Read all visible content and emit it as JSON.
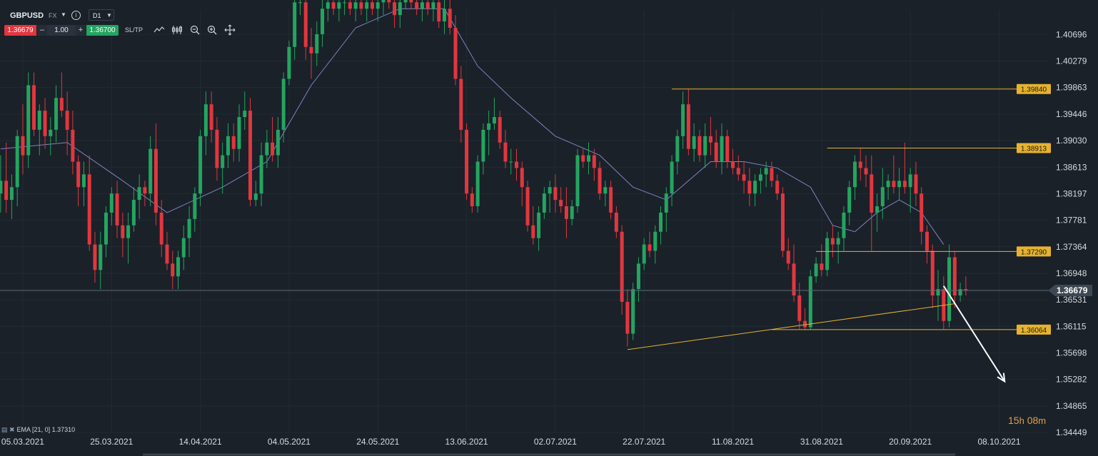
{
  "toolbar": {
    "symbol": "GBPUSD",
    "asset_class": "FX",
    "timeframe": "D1",
    "sell_price": "1.36679",
    "quantity": "1.00",
    "buy_price": "1.36700",
    "sltp_label": "SL/TP",
    "minus": "–",
    "plus": "+",
    "info": "i",
    "icons": [
      "chart-type-icon",
      "indicators-icon",
      "zoom-out-icon",
      "zoom-in-icon",
      "crosshair-icon"
    ]
  },
  "indicator_label": "EMA [21, 0] 1.37310",
  "timer": {
    "hours": "15",
    "h": "h",
    "minutes": "08",
    "m": "m"
  },
  "colors": {
    "up": "#23a560",
    "down": "#e2363f",
    "ema": "#7f84c2",
    "level": "#e7b32e",
    "background": "#1a2129",
    "arrow": "#ffffff"
  },
  "chart_data": {
    "type": "candlestick",
    "symbol": "GBPUSD",
    "timeframe": "D1",
    "ylim": [
      1.3445,
      1.4108
    ],
    "y_ticks": [
      "1.40696",
      "1.40279",
      "1.39863",
      "1.39446",
      "1.39030",
      "1.38613",
      "1.38197",
      "1.37781",
      "1.37364",
      "1.36948",
      "1.36531",
      "1.36115",
      "1.35698",
      "1.35282",
      "1.34865",
      "1.34449"
    ],
    "x_ticks": [
      "05.03.2021",
      "25.03.2021",
      "14.04.2021",
      "04.05.2021",
      "24.05.2021",
      "13.06.2021",
      "02.07.2021",
      "22.07.2021",
      "11.08.2021",
      "31.08.2021",
      "20.09.2021",
      "08.10.2021"
    ],
    "current_price": "1.36679",
    "horizontal_levels": [
      "1.39840",
      "1.38913",
      "1.37290",
      "1.36064"
    ],
    "candles": [
      [
        1.382,
        1.388,
        1.379,
        1.384
      ],
      [
        1.384,
        1.39,
        1.379,
        1.381
      ],
      [
        1.381,
        1.385,
        1.378,
        1.383
      ],
      [
        1.383,
        1.392,
        1.38,
        1.391
      ],
      [
        1.391,
        1.396,
        1.385,
        1.388
      ],
      [
        1.388,
        1.401,
        1.386,
        1.399
      ],
      [
        1.399,
        1.401,
        1.391,
        1.392
      ],
      [
        1.392,
        1.396,
        1.388,
        1.395
      ],
      [
        1.395,
        1.397,
        1.389,
        1.391
      ],
      [
        1.391,
        1.394,
        1.388,
        1.392
      ],
      [
        1.392,
        1.399,
        1.39,
        1.397
      ],
      [
        1.397,
        1.401,
        1.394,
        1.395
      ],
      [
        1.395,
        1.398,
        1.388,
        1.392
      ],
      [
        1.392,
        1.395,
        1.385,
        1.387
      ],
      [
        1.387,
        1.388,
        1.38,
        1.383
      ],
      [
        1.383,
        1.387,
        1.38,
        1.385
      ],
      [
        1.385,
        1.388,
        1.373,
        1.374
      ],
      [
        1.374,
        1.376,
        1.368,
        1.37
      ],
      [
        1.37,
        1.376,
        1.367,
        1.374
      ],
      [
        1.374,
        1.38,
        1.372,
        1.379
      ],
      [
        1.379,
        1.383,
        1.377,
        1.382
      ],
      [
        1.382,
        1.384,
        1.375,
        1.377
      ],
      [
        1.377,
        1.379,
        1.372,
        1.375
      ],
      [
        1.375,
        1.379,
        1.371,
        1.377
      ],
      [
        1.377,
        1.383,
        1.376,
        1.381
      ],
      [
        1.381,
        1.385,
        1.378,
        1.383
      ],
      [
        1.383,
        1.384,
        1.38,
        1.382
      ],
      [
        1.382,
        1.391,
        1.38,
        1.389
      ],
      [
        1.389,
        1.393,
        1.377,
        1.379
      ],
      [
        1.379,
        1.381,
        1.372,
        1.374
      ],
      [
        1.374,
        1.376,
        1.37,
        1.371
      ],
      [
        1.371,
        1.373,
        1.367,
        1.369
      ],
      [
        1.369,
        1.373,
        1.367,
        1.372
      ],
      [
        1.372,
        1.377,
        1.37,
        1.375
      ],
      [
        1.375,
        1.38,
        1.372,
        1.378
      ],
      [
        1.378,
        1.383,
        1.376,
        1.382
      ],
      [
        1.382,
        1.392,
        1.38,
        1.391
      ],
      [
        1.391,
        1.398,
        1.388,
        1.396
      ],
      [
        1.396,
        1.398,
        1.39,
        1.392
      ],
      [
        1.392,
        1.394,
        1.384,
        1.386
      ],
      [
        1.386,
        1.39,
        1.382,
        1.388
      ],
      [
        1.388,
        1.393,
        1.386,
        1.391
      ],
      [
        1.391,
        1.393,
        1.387,
        1.389
      ],
      [
        1.389,
        1.396,
        1.387,
        1.394
      ],
      [
        1.394,
        1.398,
        1.392,
        1.395
      ],
      [
        1.395,
        1.397,
        1.38,
        1.381
      ],
      [
        1.381,
        1.384,
        1.38,
        1.382
      ],
      [
        1.382,
        1.39,
        1.38,
        1.388
      ],
      [
        1.388,
        1.392,
        1.386,
        1.39
      ],
      [
        1.39,
        1.394,
        1.387,
        1.388
      ],
      [
        1.388,
        1.394,
        1.386,
        1.392
      ],
      [
        1.392,
        1.401,
        1.39,
        1.4
      ],
      [
        1.4,
        1.406,
        1.399,
        1.405
      ],
      [
        1.405,
        1.414,
        1.403,
        1.412
      ],
      [
        1.412,
        1.415,
        1.41,
        1.412
      ],
      [
        1.412,
        1.415,
        1.403,
        1.405
      ],
      [
        1.405,
        1.408,
        1.4,
        1.404
      ],
      [
        1.404,
        1.409,
        1.402,
        1.407
      ],
      [
        1.407,
        1.413,
        1.405,
        1.411
      ],
      [
        1.411,
        1.414,
        1.409,
        1.412
      ],
      [
        1.412,
        1.414,
        1.41,
        1.411
      ],
      [
        1.411,
        1.414,
        1.409,
        1.412
      ],
      [
        1.412,
        1.415,
        1.41,
        1.412
      ],
      [
        1.412,
        1.414,
        1.41,
        1.411
      ],
      [
        1.411,
        1.413,
        1.409,
        1.412
      ],
      [
        1.412,
        1.414,
        1.41,
        1.411
      ],
      [
        1.411,
        1.414,
        1.409,
        1.412
      ],
      [
        1.412,
        1.414,
        1.41,
        1.411
      ],
      [
        1.411,
        1.413,
        1.409,
        1.412
      ],
      [
        1.412,
        1.415,
        1.41,
        1.414
      ],
      [
        1.414,
        1.416,
        1.411,
        1.412
      ],
      [
        1.412,
        1.413,
        1.408,
        1.41
      ],
      [
        1.41,
        1.414,
        1.408,
        1.412
      ],
      [
        1.412,
        1.414,
        1.411,
        1.413
      ],
      [
        1.413,
        1.414,
        1.411,
        1.412
      ],
      [
        1.412,
        1.414,
        1.41,
        1.411
      ],
      [
        1.411,
        1.413,
        1.409,
        1.412
      ],
      [
        1.412,
        1.414,
        1.41,
        1.411
      ],
      [
        1.411,
        1.414,
        1.409,
        1.412
      ],
      [
        1.412,
        1.413,
        1.408,
        1.409
      ],
      [
        1.409,
        1.413,
        1.407,
        1.411
      ],
      [
        1.411,
        1.414,
        1.407,
        1.408
      ],
      [
        1.408,
        1.41,
        1.399,
        1.4
      ],
      [
        1.4,
        1.402,
        1.39,
        1.392
      ],
      [
        1.392,
        1.393,
        1.381,
        1.382
      ],
      [
        1.382,
        1.383,
        1.379,
        1.38
      ],
      [
        1.38,
        1.388,
        1.379,
        1.387
      ],
      [
        1.387,
        1.393,
        1.385,
        1.392
      ],
      [
        1.392,
        1.395,
        1.388,
        1.393
      ],
      [
        1.393,
        1.397,
        1.392,
        1.394
      ],
      [
        1.394,
        1.395,
        1.389,
        1.39
      ],
      [
        1.39,
        1.392,
        1.386,
        1.387
      ],
      [
        1.387,
        1.389,
        1.385,
        1.387
      ],
      [
        1.387,
        1.389,
        1.384,
        1.386
      ],
      [
        1.386,
        1.387,
        1.38,
        1.383
      ],
      [
        1.383,
        1.384,
        1.376,
        1.377
      ],
      [
        1.377,
        1.38,
        1.374,
        1.375
      ],
      [
        1.375,
        1.38,
        1.373,
        1.379
      ],
      [
        1.379,
        1.383,
        1.378,
        1.382
      ],
      [
        1.382,
        1.384,
        1.379,
        1.383
      ],
      [
        1.383,
        1.385,
        1.379,
        1.381
      ],
      [
        1.381,
        1.383,
        1.379,
        1.38
      ],
      [
        1.38,
        1.383,
        1.375,
        1.378
      ],
      [
        1.378,
        1.381,
        1.377,
        1.38
      ],
      [
        1.38,
        1.389,
        1.379,
        1.388
      ],
      [
        1.388,
        1.389,
        1.386,
        1.387
      ],
      [
        1.387,
        1.39,
        1.385,
        1.388
      ],
      [
        1.388,
        1.389,
        1.384,
        1.386
      ],
      [
        1.386,
        1.387,
        1.381,
        1.382
      ],
      [
        1.382,
        1.384,
        1.38,
        1.383
      ],
      [
        1.383,
        1.384,
        1.378,
        1.379
      ],
      [
        1.379,
        1.38,
        1.375,
        1.376
      ],
      [
        1.376,
        1.377,
        1.363,
        1.365
      ],
      [
        1.365,
        1.367,
        1.358,
        1.36
      ],
      [
        1.36,
        1.368,
        1.359,
        1.367
      ],
      [
        1.367,
        1.372,
        1.365,
        1.371
      ],
      [
        1.371,
        1.375,
        1.37,
        1.374
      ],
      [
        1.374,
        1.376,
        1.372,
        1.373
      ],
      [
        1.373,
        1.377,
        1.371,
        1.376
      ],
      [
        1.376,
        1.38,
        1.374,
        1.379
      ],
      [
        1.379,
        1.383,
        1.376,
        1.382
      ],
      [
        1.382,
        1.388,
        1.38,
        1.387
      ],
      [
        1.387,
        1.392,
        1.385,
        1.391
      ],
      [
        1.391,
        1.398,
        1.389,
        1.396
      ],
      [
        1.396,
        1.3984,
        1.388,
        1.389
      ],
      [
        1.389,
        1.393,
        1.387,
        1.391
      ],
      [
        1.391,
        1.392,
        1.387,
        1.388
      ],
      [
        1.388,
        1.393,
        1.386,
        1.391
      ],
      [
        1.391,
        1.394,
        1.388,
        1.39
      ],
      [
        1.39,
        1.392,
        1.386,
        1.387
      ],
      [
        1.387,
        1.393,
        1.385,
        1.391
      ],
      [
        1.391,
        1.392,
        1.386,
        1.387
      ],
      [
        1.387,
        1.389,
        1.385,
        1.386
      ],
      [
        1.386,
        1.388,
        1.384,
        1.385
      ],
      [
        1.385,
        1.387,
        1.382,
        1.384
      ],
      [
        1.384,
        1.386,
        1.38,
        1.382
      ],
      [
        1.382,
        1.385,
        1.38,
        1.384
      ],
      [
        1.384,
        1.386,
        1.382,
        1.385
      ],
      [
        1.385,
        1.387,
        1.383,
        1.386
      ],
      [
        1.386,
        1.387,
        1.383,
        1.384
      ],
      [
        1.384,
        1.385,
        1.381,
        1.382
      ],
      [
        1.382,
        1.383,
        1.372,
        1.373
      ],
      [
        1.373,
        1.375,
        1.37,
        1.371
      ],
      [
        1.371,
        1.374,
        1.365,
        1.366
      ],
      [
        1.366,
        1.368,
        1.3607,
        1.362
      ],
      [
        1.362,
        1.364,
        1.3606,
        1.361
      ],
      [
        1.361,
        1.37,
        1.3606,
        1.369
      ],
      [
        1.369,
        1.372,
        1.368,
        1.371
      ],
      [
        1.371,
        1.374,
        1.369,
        1.37
      ],
      [
        1.37,
        1.376,
        1.369,
        1.375
      ],
      [
        1.375,
        1.377,
        1.372,
        1.374
      ],
      [
        1.374,
        1.376,
        1.371,
        1.375
      ],
      [
        1.375,
        1.38,
        1.373,
        1.379
      ],
      [
        1.379,
        1.384,
        1.377,
        1.383
      ],
      [
        1.383,
        1.388,
        1.381,
        1.387
      ],
      [
        1.387,
        1.3891,
        1.384,
        1.386
      ],
      [
        1.386,
        1.388,
        1.383,
        1.385
      ],
      [
        1.385,
        1.388,
        1.373,
        1.379
      ],
      [
        1.379,
        1.382,
        1.376,
        1.38
      ],
      [
        1.38,
        1.386,
        1.378,
        1.383
      ],
      [
        1.383,
        1.385,
        1.381,
        1.384
      ],
      [
        1.384,
        1.388,
        1.382,
        1.383
      ],
      [
        1.383,
        1.386,
        1.381,
        1.384
      ],
      [
        1.384,
        1.39,
        1.382,
        1.383
      ],
      [
        1.383,
        1.386,
        1.379,
        1.385
      ],
      [
        1.385,
        1.387,
        1.38,
        1.382
      ],
      [
        1.382,
        1.383,
        1.374,
        1.376
      ],
      [
        1.376,
        1.377,
        1.371,
        1.373
      ],
      [
        1.373,
        1.374,
        1.364,
        1.366
      ],
      [
        1.366,
        1.37,
        1.362,
        1.367
      ],
      [
        1.367,
        1.369,
        1.3607,
        1.362
      ],
      [
        1.362,
        1.374,
        1.361,
        1.372
      ],
      [
        1.372,
        1.3729,
        1.364,
        1.366
      ],
      [
        1.366,
        1.368,
        1.365,
        1.367
      ],
      [
        1.367,
        1.369,
        1.366,
        1.3668
      ]
    ],
    "ema_series": [
      [
        0,
        1.389
      ],
      [
        12,
        1.39
      ],
      [
        22,
        1.384
      ],
      [
        30,
        1.379
      ],
      [
        40,
        1.383
      ],
      [
        48,
        1.387
      ],
      [
        56,
        1.399
      ],
      [
        64,
        1.408
      ],
      [
        72,
        1.411
      ],
      [
        80,
        1.411
      ],
      [
        86,
        1.402
      ],
      [
        92,
        1.397
      ],
      [
        100,
        1.391
      ],
      [
        108,
        1.388
      ],
      [
        114,
        1.383
      ],
      [
        120,
        1.381
      ],
      [
        124,
        1.384
      ],
      [
        128,
        1.387
      ],
      [
        134,
        1.387
      ],
      [
        140,
        1.386
      ],
      [
        146,
        1.383
      ],
      [
        150,
        1.377
      ],
      [
        154,
        1.376
      ],
      [
        158,
        1.379
      ],
      [
        162,
        1.381
      ],
      [
        166,
        1.379
      ],
      [
        170,
        1.374
      ]
    ],
    "trendlines": [
      {
        "from": [
          113,
          1.3575
        ],
        "to": [
          172,
          1.3647
        ]
      }
    ],
    "projection_arrow": {
      "from": [
        170,
        1.3675
      ],
      "to": [
        181,
        1.3525
      ]
    }
  }
}
